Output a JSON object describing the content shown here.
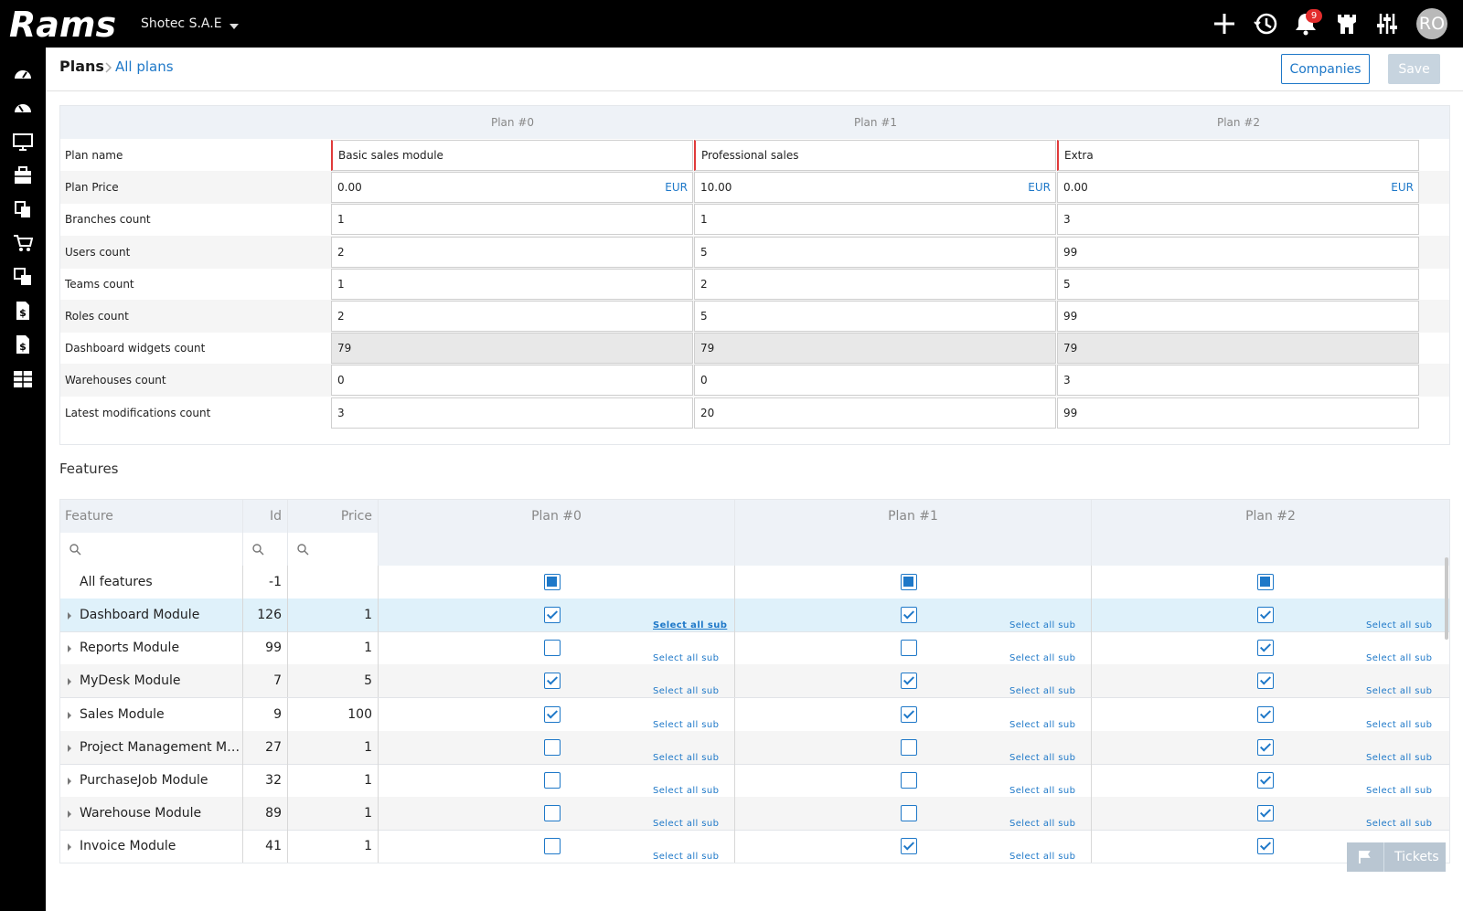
{
  "app": {
    "logo_text": "Rams",
    "company": "Shotec S.A.E",
    "notifications_count": "9",
    "avatar_initials": "RO"
  },
  "breadcrumb": {
    "root": "Plans",
    "current": "All plans"
  },
  "actions": {
    "companies": "Companies",
    "save": "Save"
  },
  "plans": {
    "columns": [
      "Plan #0",
      "Plan #1",
      "Plan #2"
    ],
    "currency": "EUR",
    "rows": [
      {
        "label": "Plan name",
        "values": [
          "Basic sales module",
          "Professional sales",
          "Extra"
        ]
      },
      {
        "label": "Plan Price",
        "values": [
          "0.00",
          "10.00",
          "0.00"
        ]
      },
      {
        "label": "Branches count",
        "values": [
          "1",
          "1",
          "3"
        ]
      },
      {
        "label": "Users count",
        "values": [
          "2",
          "5",
          "99"
        ]
      },
      {
        "label": "Teams count",
        "values": [
          "1",
          "2",
          "5"
        ]
      },
      {
        "label": "Roles count",
        "values": [
          "2",
          "5",
          "99"
        ]
      },
      {
        "label": "Dashboard widgets count",
        "values": [
          "79",
          "79",
          "79"
        ]
      },
      {
        "label": "Warehouses count",
        "values": [
          "0",
          "0",
          "3"
        ]
      },
      {
        "label": "Latest modifications count",
        "values": [
          "3",
          "20",
          "99"
        ]
      }
    ]
  },
  "features": {
    "title": "Features",
    "headers": {
      "feature": "Feature",
      "id": "Id",
      "price": "Price",
      "plans": [
        "Plan #0",
        "Plan #1",
        "Plan #2"
      ]
    },
    "select_all_sub": "Select all sub",
    "all_row": {
      "name": "All features",
      "id": "-1",
      "checks": [
        true,
        true,
        true
      ]
    },
    "rows": [
      {
        "name": "Dashboard Module",
        "id": "126",
        "price": "1",
        "checks": [
          true,
          true,
          true
        ]
      },
      {
        "name": "Reports Module",
        "id": "99",
        "price": "1",
        "checks": [
          false,
          false,
          true
        ]
      },
      {
        "name": "MyDesk Module",
        "id": "7",
        "price": "5",
        "checks": [
          true,
          true,
          true
        ]
      },
      {
        "name": "Sales Module",
        "id": "9",
        "price": "100",
        "checks": [
          true,
          true,
          true
        ]
      },
      {
        "name": "Project Management Module",
        "id": "27",
        "price": "1",
        "checks": [
          false,
          false,
          true
        ]
      },
      {
        "name": "PurchaseJob Module",
        "id": "32",
        "price": "1",
        "checks": [
          false,
          false,
          true
        ]
      },
      {
        "name": "Warehouse Module",
        "id": "89",
        "price": "1",
        "checks": [
          false,
          false,
          true
        ]
      },
      {
        "name": "Invoice Module",
        "id": "41",
        "price": "1",
        "checks": [
          false,
          true,
          true
        ]
      }
    ]
  },
  "tickets": {
    "label": "Tickets"
  }
}
